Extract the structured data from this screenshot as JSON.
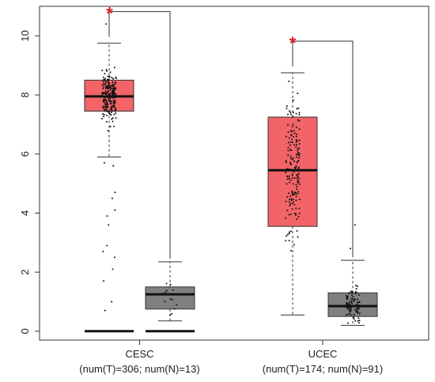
{
  "chart_data": {
    "type": "box",
    "title": "",
    "xlabel": "",
    "ylabel": "",
    "ylim": [
      -0.3,
      11.0
    ],
    "yticks": [
      0,
      2,
      4,
      6,
      8,
      10
    ],
    "ytick_labels": [
      "0",
      "2",
      "4",
      "6",
      "8",
      "10"
    ],
    "colors": {
      "tumor": "#f26468",
      "normal": "#808080",
      "significance": "#e02020"
    },
    "groups": [
      {
        "name": "CESC",
        "label": "CESC",
        "sublabel": "(num(T)=306; num(N)=13)",
        "significance": "*",
        "tumor": {
          "n": 306,
          "whisker_low": 5.9,
          "q1": 7.45,
          "median": 7.95,
          "q3": 8.5,
          "whisker_high": 9.75,
          "zero_line": 0
        },
        "normal": {
          "n": 13,
          "whisker_low": 0.35,
          "q1": 0.75,
          "median": 1.25,
          "q3": 1.5,
          "whisker_high": 2.35,
          "zero_line": 0
        }
      },
      {
        "name": "UCEC",
        "label": "UCEC",
        "sublabel": "(num(T)=174; num(N)=91)",
        "significance": "*",
        "tumor": {
          "n": 174,
          "whisker_low": 0.55,
          "q1": 3.55,
          "median": 5.45,
          "q3": 7.25,
          "whisker_high": 8.75
        },
        "normal": {
          "n": 91,
          "whisker_low": 0.2,
          "q1": 0.5,
          "median": 0.85,
          "q3": 1.3,
          "whisker_high": 2.4
        }
      }
    ]
  }
}
